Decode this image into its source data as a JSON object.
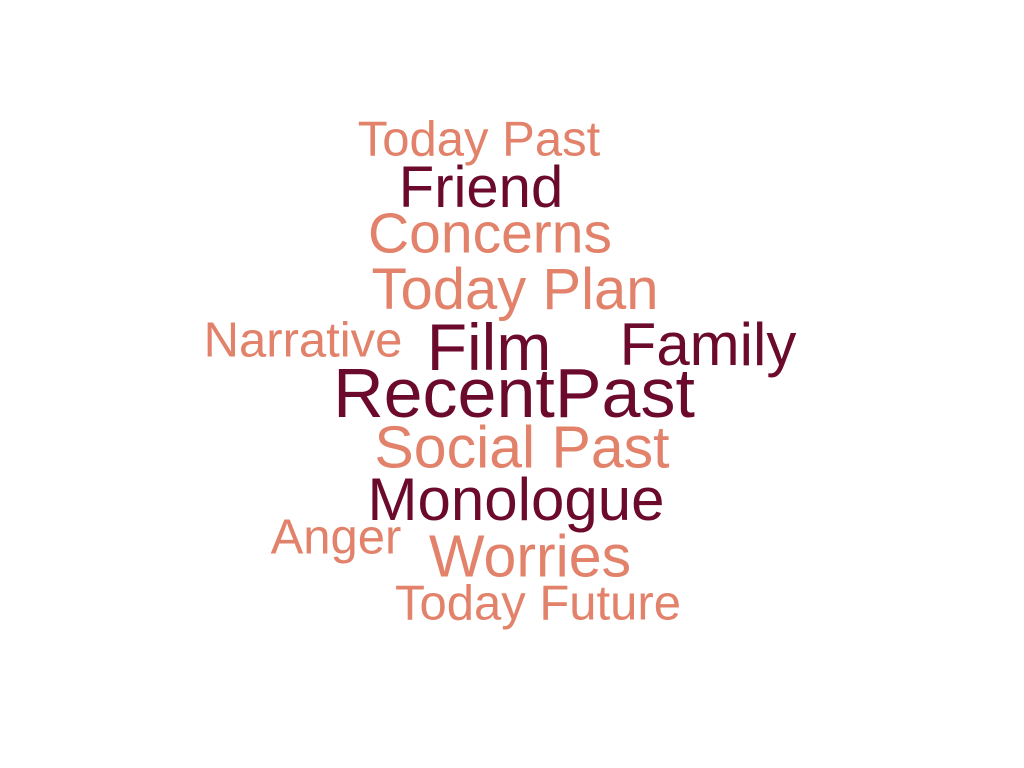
{
  "colors": {
    "light": "#e2826a",
    "dark": "#6b0a2c",
    "background": "#ffffff"
  },
  "words": [
    {
      "id": "today-past",
      "text": "Today Past",
      "tone": "light"
    },
    {
      "id": "friend",
      "text": "Friend",
      "tone": "dark"
    },
    {
      "id": "concerns",
      "text": "Concerns",
      "tone": "light"
    },
    {
      "id": "today-plan",
      "text": "Today Plan",
      "tone": "light"
    },
    {
      "id": "narrative",
      "text": "Narrative",
      "tone": "light"
    },
    {
      "id": "film",
      "text": "Film",
      "tone": "dark"
    },
    {
      "id": "family",
      "text": "Family",
      "tone": "dark"
    },
    {
      "id": "recentpast",
      "text": "RecentPast",
      "tone": "dark"
    },
    {
      "id": "social-past",
      "text": "Social Past",
      "tone": "light"
    },
    {
      "id": "monologue",
      "text": "Monologue",
      "tone": "dark"
    },
    {
      "id": "anger",
      "text": "Anger",
      "tone": "light"
    },
    {
      "id": "worries",
      "text": "Worries",
      "tone": "light"
    },
    {
      "id": "today-future",
      "text": "Today Future",
      "tone": "light"
    }
  ]
}
